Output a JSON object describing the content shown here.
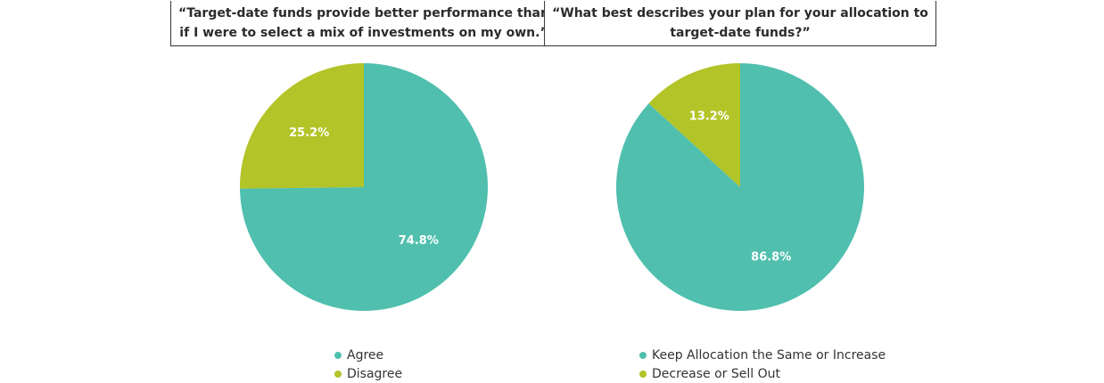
{
  "colors": {
    "teal": "#50bfae",
    "green": "#b2c427"
  },
  "chart_data": [
    {
      "type": "pie",
      "title_lines": [
        "“Target-date funds provide better performance than",
        "if I were to select a mix of investments on my own.”"
      ],
      "slices": [
        {
          "label": "Agree",
          "value": 74.8,
          "display": "74.8%",
          "color": "#50bfae"
        },
        {
          "label": "Disagree",
          "value": 25.2,
          "display": "25.2%",
          "color": "#b2c427"
        }
      ],
      "legend_position": "bottom"
    },
    {
      "type": "pie",
      "title_lines": [
        "“What best describes your plan for your allocation to",
        "target-date funds?”"
      ],
      "slices": [
        {
          "label": "Keep Allocation the Same or Increase",
          "value": 86.8,
          "display": "86.8%",
          "color": "#50bfae"
        },
        {
          "label": "Decrease or Sell Out",
          "value": 13.2,
          "display": "13.2%",
          "color": "#b2c427"
        }
      ],
      "legend_position": "bottom"
    }
  ]
}
